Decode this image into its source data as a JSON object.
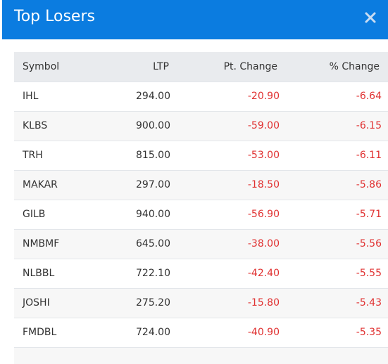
{
  "modal": {
    "title": "Top Losers",
    "close_icon": "close-icon"
  },
  "colors": {
    "header_bg": "#0b7ce0",
    "negative": "#e03131",
    "table_header_bg": "#e9ebee"
  },
  "table": {
    "columns": [
      "Symbol",
      "LTP",
      "Pt. Change",
      "% Change"
    ],
    "rows": [
      {
        "symbol": "IHL",
        "ltp": "294.00",
        "pt_change": "-20.90",
        "pct_change": "-6.64"
      },
      {
        "symbol": "KLBS",
        "ltp": "900.00",
        "pt_change": "-59.00",
        "pct_change": "-6.15"
      },
      {
        "symbol": "TRH",
        "ltp": "815.00",
        "pt_change": "-53.00",
        "pct_change": "-6.11"
      },
      {
        "symbol": "MAKAR",
        "ltp": "297.00",
        "pt_change": "-18.50",
        "pct_change": "-5.86"
      },
      {
        "symbol": "GILB",
        "ltp": "940.00",
        "pt_change": "-56.90",
        "pct_change": "-5.71"
      },
      {
        "symbol": "NMBMF",
        "ltp": "645.00",
        "pt_change": "-38.00",
        "pct_change": "-5.56"
      },
      {
        "symbol": "NLBBL",
        "ltp": "722.10",
        "pt_change": "-42.40",
        "pct_change": "-5.55"
      },
      {
        "symbol": "JOSHI",
        "ltp": "275.20",
        "pt_change": "-15.80",
        "pct_change": "-5.43"
      },
      {
        "symbol": "FMDBL",
        "ltp": "724.00",
        "pt_change": "-40.90",
        "pct_change": "-5.35"
      }
    ]
  }
}
